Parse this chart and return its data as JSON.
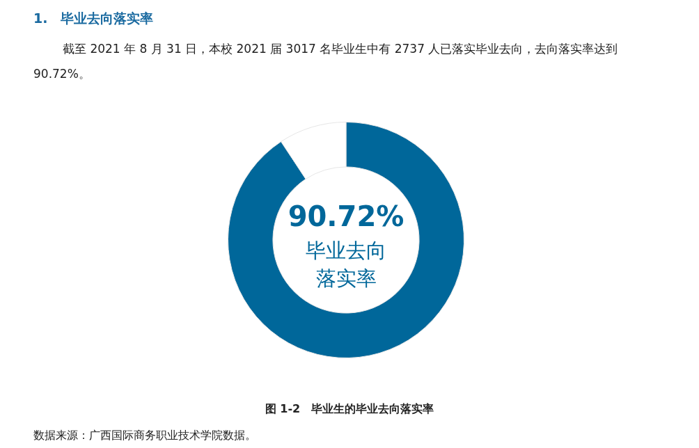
{
  "chart_data": {
    "type": "donut",
    "title": "1.　毕业去向落实率",
    "subtitle": "截至 2021 年 8 月 31 日，本校 2021 届 3017 名毕业生中有 2737 人已落实毕业去向，去向落实率达到 90.72%。",
    "categories": [
      null,
      null
    ],
    "values": [
      90.72,
      9.28
    ],
    "colors": [
      "#00679a",
      "#ffffff"
    ],
    "value_labels": [
      "90.72%",
      null
    ],
    "annotations": [
      "毕业去向落实率",
      "图 1-2　毕业生的毕业去向落实率",
      "数据来源：广西国际商务职业技术学院数据。"
    ],
    "legend": false
  }
}
